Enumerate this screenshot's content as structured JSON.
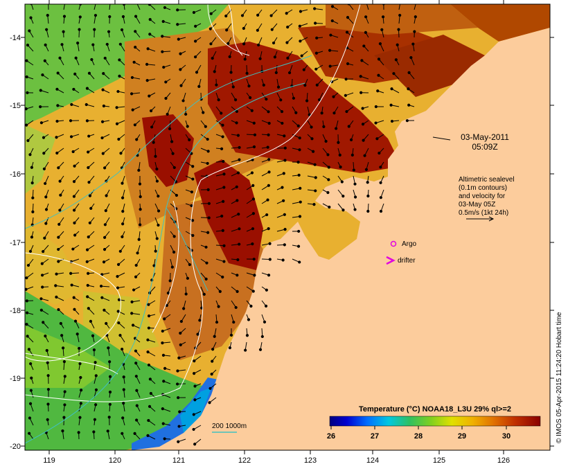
{
  "map": {
    "lon_ticks": [
      "119",
      "120",
      "121",
      "122",
      "123",
      "124",
      "125",
      "126"
    ],
    "lat_ticks": [
      "-14",
      "-15",
      "-16",
      "-17",
      "-18",
      "-19",
      "-20"
    ],
    "lon_range": [
      118.6,
      126.7
    ],
    "lat_range": [
      -20.1,
      -13.6
    ]
  },
  "timestamp": {
    "date": "03-May-2011",
    "time": "05:09Z"
  },
  "altimetry_note": {
    "lines": [
      "Altimetric sealevel",
      "(0.1m contours)",
      "and velocity for",
      "03-May 05Z",
      "0.5m/s (1kt 24h)"
    ]
  },
  "legend": {
    "argo_label": "Argo",
    "drifter_label": "drifter",
    "argo_color": "#e000e0"
  },
  "bathymetry": {
    "label": "200  1000m",
    "color": "#40c0c0"
  },
  "colorbar": {
    "title": "Temperature (°C) NOAA18_L3U 29% ql>=2",
    "ticks": [
      "26",
      "27",
      "28",
      "29",
      "30"
    ],
    "range": [
      26,
      30.6
    ]
  },
  "credit": "© IMOS 05-Apr-2015 11:24:20 Hobart time",
  "colors": {
    "land": "#fccc9c",
    "sst_warm": "#9a0f00",
    "sst_mid": "#e8a030",
    "sst_cool": "#40b040"
  }
}
